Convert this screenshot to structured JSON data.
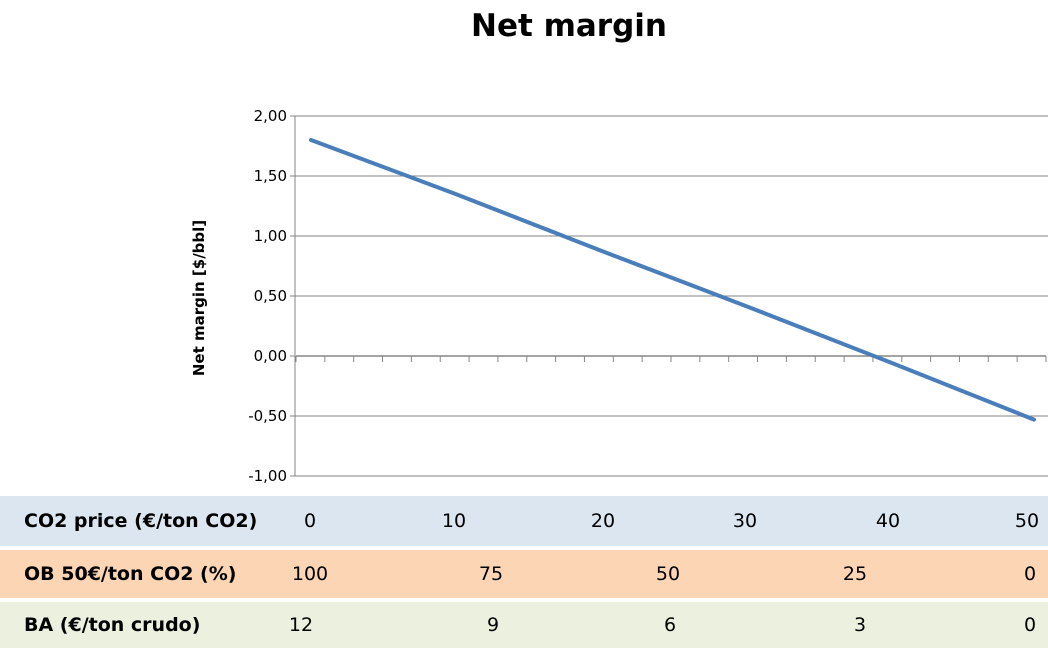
{
  "colors": {
    "line": "#4a7ebb",
    "grid": "#868686",
    "co2_row_bg": "#dce6f1",
    "ob_row_bg": "#fcd5b4",
    "ba_row_bg": "#ebf1de"
  },
  "chart_data": {
    "type": "line",
    "title": "Net margin",
    "ylabel": "Net margin [$/bbl]",
    "ylim": [
      -1.0,
      2.0
    ],
    "yticks": [
      2.0,
      1.5,
      1.0,
      0.5,
      0.0,
      -0.5,
      -1.0
    ],
    "ytick_labels": [
      "2,00",
      "1,50",
      "1,00",
      "0,50",
      "0,00",
      "-0,50",
      "-1,00"
    ],
    "xlim": [
      0,
      50
    ],
    "grid": true,
    "series": [
      {
        "x": [
          0,
          10,
          20,
          30,
          40,
          50
        ],
        "y": [
          1.8,
          1.35,
          0.88,
          0.42,
          -0.05,
          -0.53
        ]
      }
    ]
  },
  "table": {
    "rows": [
      {
        "id": "co2",
        "label": "CO2 price (€/ton CO2)",
        "values": [
          "0",
          "10",
          "20",
          "30",
          "40",
          "50"
        ]
      },
      {
        "id": "ob",
        "label": "OB  50€/ton CO2 (%)",
        "values": [
          "100",
          "75",
          "50",
          "25",
          "0"
        ]
      },
      {
        "id": "ba",
        "label": "BA (€/ton crudo)",
        "values": [
          "12",
          "9",
          "6",
          "3",
          "0"
        ]
      }
    ]
  }
}
